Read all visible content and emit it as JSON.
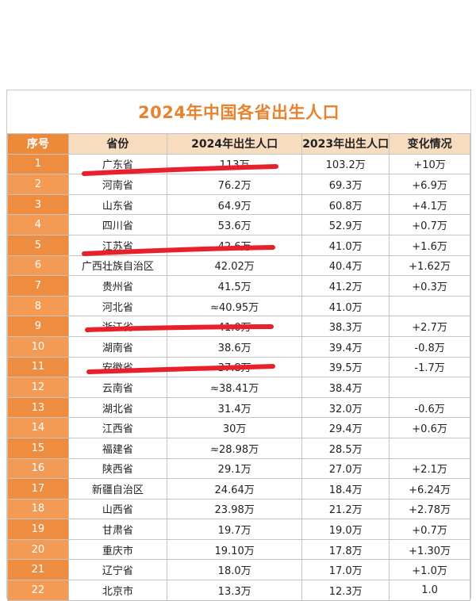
{
  "title": "2024年中国各省出生人口",
  "headers": [
    "序号",
    "省份",
    "2024年出生人口",
    "2023年出生人口",
    "变化情况"
  ],
  "rows": [
    [
      "1",
      "广东省",
      "113万",
      "103.2万",
      "+10万"
    ],
    [
      "2",
      "河南省",
      "76.2万",
      "69.3万",
      "+6.9万"
    ],
    [
      "3",
      "山东省",
      "64.9万",
      "60.8万",
      "+4.1万"
    ],
    [
      "4",
      "四川省",
      "53.6万",
      "52.9万",
      "+0.7万"
    ],
    [
      "5",
      "江苏省",
      "42.6万",
      "41.0万",
      "+1.6万"
    ],
    [
      "6",
      "广西壮族自治区",
      "42.02万",
      "40.4万",
      "+1.62万"
    ],
    [
      "7",
      "贵州省",
      "41.5万",
      "41.2万",
      "+0.3万"
    ],
    [
      "8",
      "河北省",
      "≈40.95万",
      "41.0万",
      ""
    ],
    [
      "9",
      "浙江省",
      "41.0万",
      "38.3万",
      "+2.7万"
    ],
    [
      "10",
      "湖南省",
      "38.6万",
      "39.4万",
      "-0.8万"
    ],
    [
      "11",
      "安徽省",
      "37.8万",
      "39.5万",
      "-1.7万"
    ],
    [
      "12",
      "云南省",
      "≈38.41万",
      "38.4万",
      ""
    ],
    [
      "13",
      "湖北省",
      "31.4万",
      "32.0万",
      "-0.6万"
    ],
    [
      "14",
      "江西省",
      "30万",
      "29.4万",
      "+0.6万"
    ],
    [
      "15",
      "福建省",
      "≈28.98万",
      "28.5万",
      ""
    ],
    [
      "16",
      "陕西省",
      "29.1万",
      "27.0万",
      "+2.1万"
    ],
    [
      "17",
      "新疆自治区",
      "24.64万",
      "18.4万",
      "+6.24万"
    ],
    [
      "18",
      "山西省",
      "23.98万",
      "21.2万",
      "+2.78万"
    ],
    [
      "19",
      "甘肃省",
      "19.7万",
      "19.0万",
      "+0.7万"
    ],
    [
      "20",
      "重庆市",
      "19.10万",
      "17.8万",
      "+1.30万"
    ],
    [
      "21",
      "辽宁省",
      "18.0万",
      "17.0万",
      "+1.0万"
    ],
    [
      "22",
      "北京市",
      "13.3万",
      "12.3万",
      "1.0"
    ]
  ],
  "colors": {
    "title": "#e8822e",
    "header_index": "#ec8a3a",
    "header": "#f7dcc0",
    "index_cell": "#ee8d3f",
    "highlight_stroke": "#e8202a"
  }
}
